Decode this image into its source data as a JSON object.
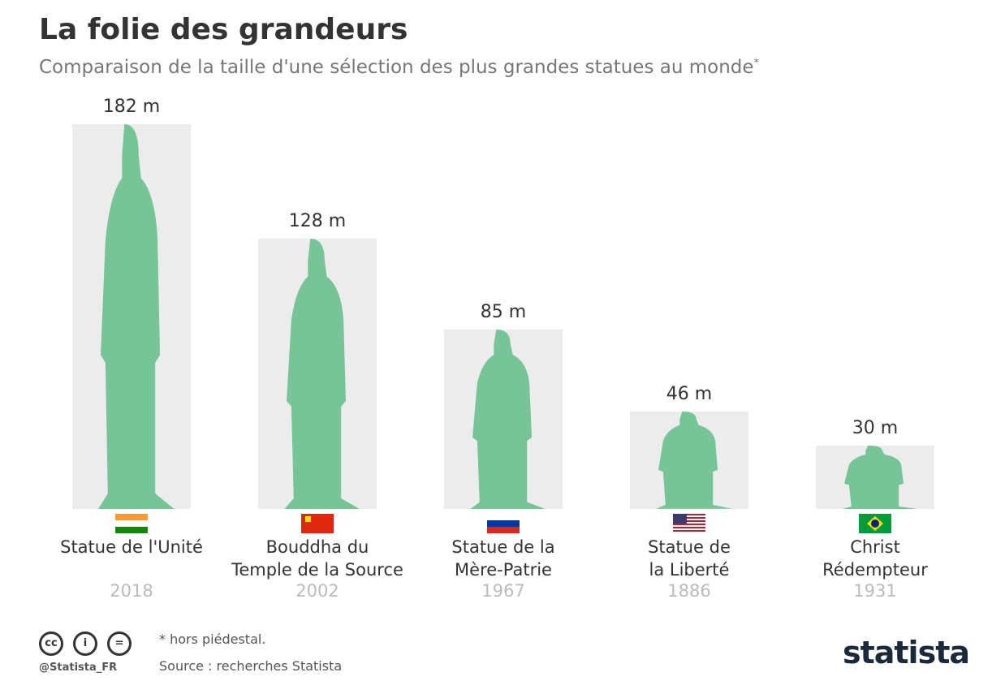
{
  "chart_data": {
    "type": "bar",
    "title": "La folie des grandeurs",
    "subtitle": "Comparaison de la taille d'une sélection des plus grandes statues au monde",
    "subtitle_note": "*",
    "categories": [
      "Statue de l'Unité",
      "Bouddha du\nTemple de la Source",
      "Statue de la\nMère-Patrie",
      "Statue de\nla Liberté",
      "Christ\nRédempteur"
    ],
    "years": [
      "2018",
      "2002",
      "1967",
      "1886",
      "1931"
    ],
    "values": [
      182,
      128,
      85,
      46,
      30
    ],
    "value_labels": [
      "182 m",
      "128 m",
      "85 m",
      "46 m",
      "30 m"
    ],
    "color": "#ececec",
    "statue_color": "#77c499",
    "footnote": "* hors piédestal.",
    "source": "Source : recherches Statista",
    "handle": "@Statista_FR",
    "brand": "statista"
  }
}
